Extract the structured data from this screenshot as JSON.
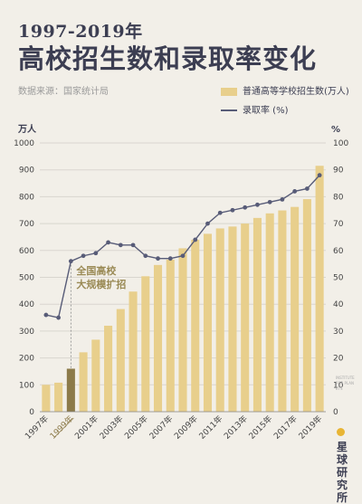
{
  "header": {
    "subtitle": "1997-2019年",
    "title": "高校招生数和录取率变化",
    "source": "数据来源：国家统计局"
  },
  "legend": {
    "bar_label": "普通高等学校招生数(万人)",
    "line_label": "录取率 (%)"
  },
  "chart_data": {
    "type": "bar",
    "categories": [
      "1997",
      "1998",
      "1999",
      "2000",
      "2001",
      "2002",
      "2003",
      "2004",
      "2005",
      "2006",
      "2007",
      "2008",
      "2009",
      "2010",
      "2011",
      "2012",
      "2013",
      "2014",
      "2015",
      "2016",
      "2017",
      "2018",
      "2019"
    ],
    "x_tick_labels": [
      "1997年",
      "",
      "1999年",
      "",
      "2001年",
      "",
      "2003年",
      "",
      "2005年",
      "",
      "2007年",
      "",
      "2009年",
      "",
      "2011年",
      "",
      "2013年",
      "",
      "2015年",
      "",
      "2017年",
      "",
      "2019年"
    ],
    "series": [
      {
        "name": "普通高等学校招生数(万人)",
        "axis": "left",
        "type": "bar",
        "values": [
          100,
          108,
          160,
          221,
          268,
          320,
          382,
          447,
          504,
          546,
          566,
          608,
          640,
          662,
          682,
          689,
          700,
          721,
          738,
          749,
          762,
          791,
          915
        ]
      },
      {
        "name": "录取率 (%)",
        "axis": "right",
        "type": "line",
        "values": [
          36,
          35,
          56,
          58,
          59,
          63,
          62,
          62,
          58,
          57,
          57,
          58,
          64,
          70,
          74,
          75,
          76,
          77,
          78,
          79,
          82,
          83,
          88
        ]
      }
    ],
    "highlight_category": "1999",
    "y_left": {
      "label": "万人",
      "min": 0,
      "max": 1000,
      "ticks": [
        "0",
        "100",
        "200",
        "300",
        "400",
        "500",
        "600",
        "700",
        "800",
        "900",
        "1000"
      ]
    },
    "y_right": {
      "label": "%",
      "min": 0,
      "max": 100,
      "ticks": [
        "0",
        "10",
        "20",
        "30",
        "40",
        "50",
        "60",
        "70",
        "80",
        "90",
        "100"
      ]
    },
    "annotation": {
      "text_lines": [
        "全国高校",
        "大规模扩招"
      ],
      "category": "1999"
    },
    "grid": true,
    "colors": {
      "bar": "#e8cf8c",
      "bar_highlight": "#8c7a49",
      "line": "#585c78",
      "grid": "#d9d6cf",
      "annotation_text": "#9a8a55"
    }
  },
  "branding": {
    "watermark": "INSTITUTE FOR PLANETS",
    "logo_lines": [
      "星",
      "球",
      "研",
      "究",
      "所"
    ]
  }
}
